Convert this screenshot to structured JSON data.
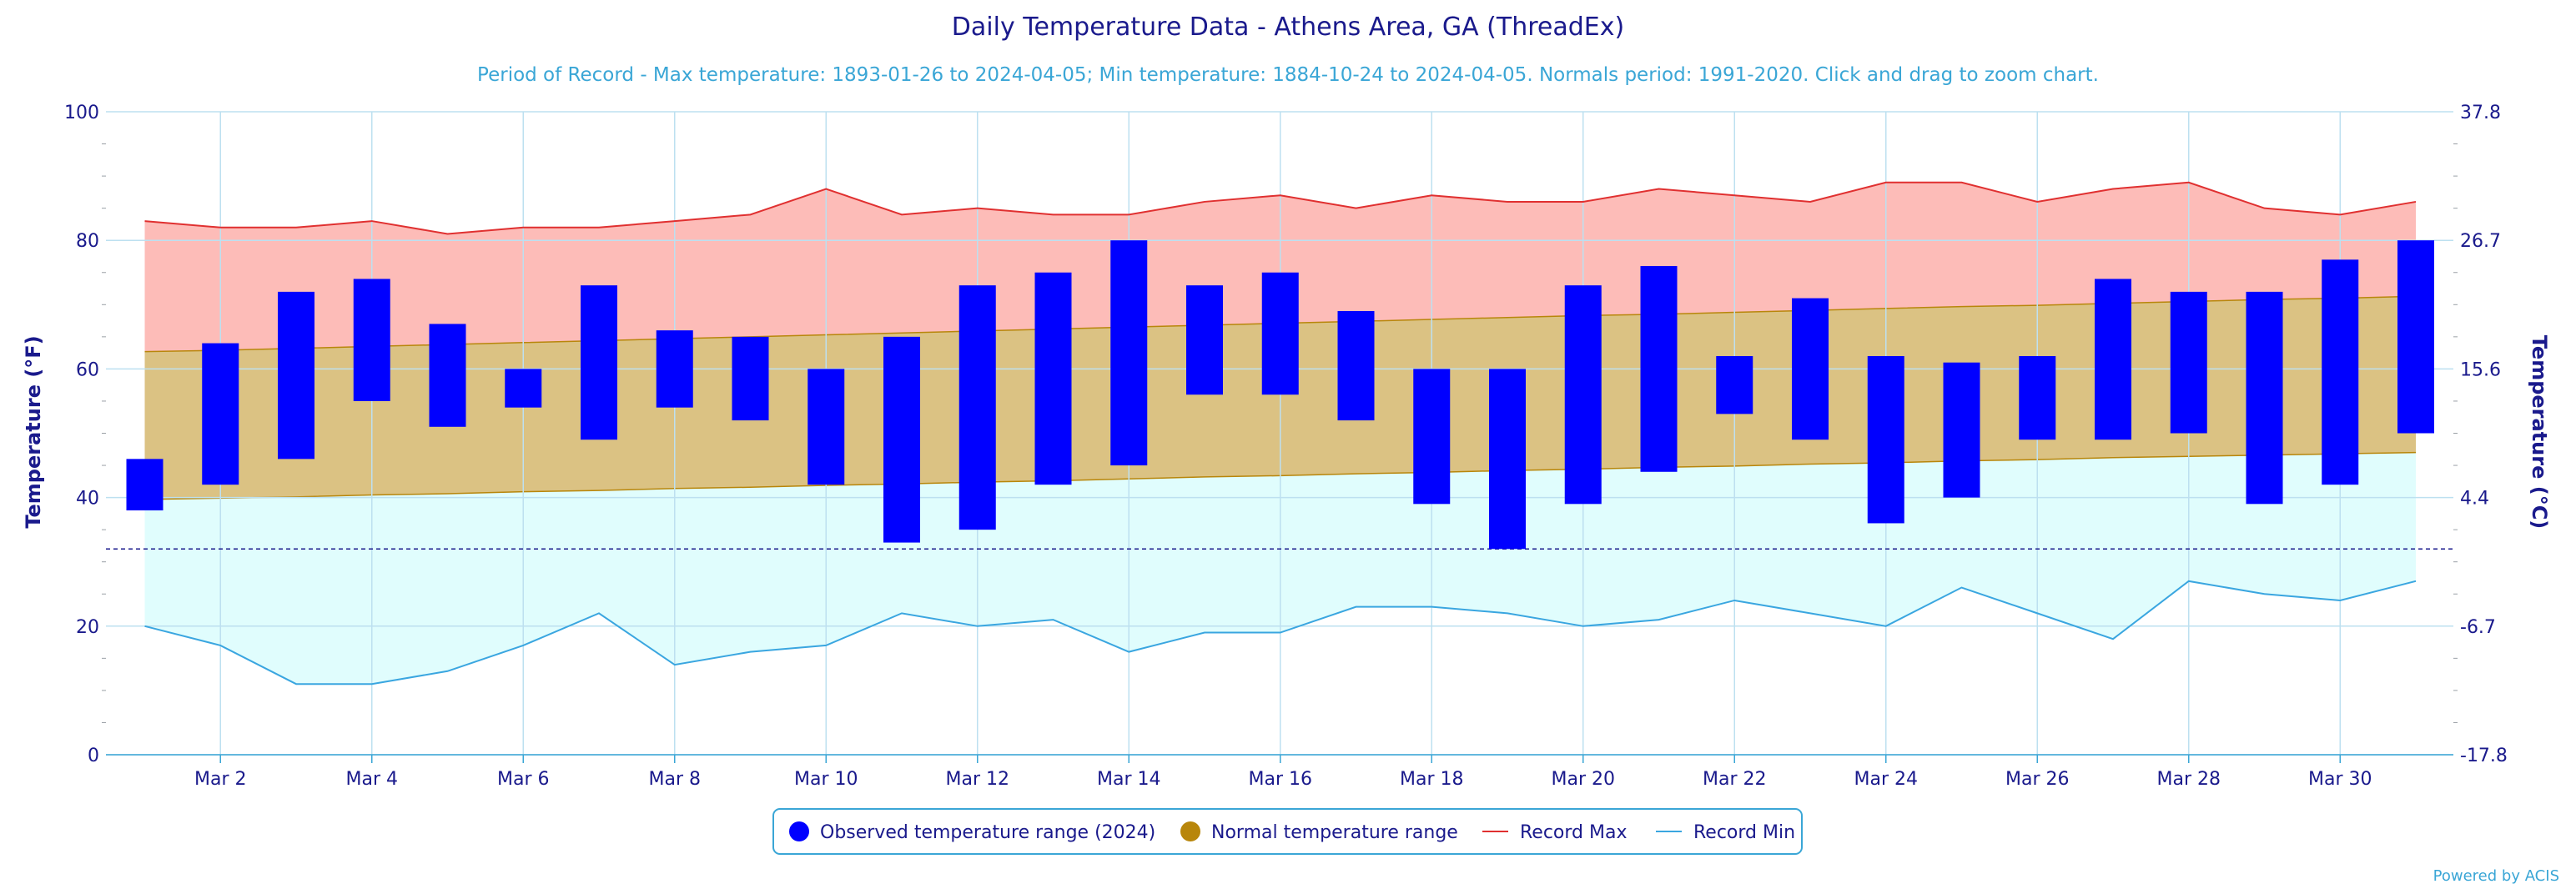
{
  "chart_data": {
    "type": "bar",
    "title": "Daily Temperature Data - Athens Area, GA (ThreadEx)",
    "subtitle": "Period of Record - Max temperature: 1893-01-26 to 2024-04-05; Min temperature: 1884-10-24 to 2024-04-05. Normals period: 1991-2020. Click and drag to zoom chart.",
    "ylabel": "Temperature (°F)",
    "y2label": "Temperature (°C)",
    "ylim": [
      0,
      100
    ],
    "yticks": [
      0,
      20,
      40,
      60,
      80,
      100
    ],
    "y2ticks": [
      "-17.8",
      "-6.7",
      "4.4",
      "15.6",
      "26.7",
      "37.8"
    ],
    "grid": true,
    "freezing_line": 32,
    "x": [
      1,
      2,
      3,
      4,
      5,
      6,
      7,
      8,
      9,
      10,
      11,
      12,
      13,
      14,
      15,
      16,
      17,
      18,
      19,
      20,
      21,
      22,
      23,
      24,
      25,
      26,
      27,
      28,
      29,
      30,
      31
    ],
    "xtick_labels": [
      "Mar 2",
      "Mar 4",
      "Mar 6",
      "Mar 8",
      "Mar 10",
      "Mar 12",
      "Mar 14",
      "Mar 16",
      "Mar 18",
      "Mar 20",
      "Mar 22",
      "Mar 24",
      "Mar 26",
      "Mar 28",
      "Mar 30"
    ],
    "xtick_days": [
      2,
      4,
      6,
      8,
      10,
      12,
      14,
      16,
      18,
      20,
      22,
      24,
      26,
      28,
      30
    ],
    "series": [
      {
        "name": "Observed temperature range (2024)",
        "color": "#0000ff",
        "high": [
          46,
          64,
          72,
          74,
          67,
          60,
          73,
          66,
          65,
          60,
          65,
          73,
          75,
          80,
          73,
          75,
          69,
          60,
          60,
          73,
          76,
          62,
          71,
          62,
          61,
          62,
          74,
          72,
          72,
          77,
          80
        ],
        "low": [
          38,
          42,
          46,
          55,
          51,
          54,
          49,
          54,
          52,
          42,
          33,
          35,
          42,
          45,
          56,
          56,
          52,
          39,
          32,
          39,
          44,
          53,
          49,
          36,
          40,
          49,
          49,
          50,
          39,
          42,
          50
        ]
      },
      {
        "name": "Normal temperature range",
        "color": "#b8860b",
        "high": [
          62.7,
          62.9,
          63.2,
          63.5,
          63.8,
          64.1,
          64.4,
          64.7,
          65.0,
          65.3,
          65.6,
          65.9,
          66.2,
          66.5,
          66.8,
          67.1,
          67.4,
          67.7,
          68.0,
          68.3,
          68.5,
          68.8,
          69.1,
          69.4,
          69.7,
          69.9,
          70.2,
          70.5,
          70.8,
          71.0,
          71.3
        ],
        "low": [
          39.7,
          39.9,
          40.1,
          40.4,
          40.6,
          40.9,
          41.1,
          41.4,
          41.6,
          41.9,
          42.1,
          42.4,
          42.6,
          42.9,
          43.2,
          43.4,
          43.7,
          43.9,
          44.2,
          44.4,
          44.7,
          44.9,
          45.2,
          45.4,
          45.7,
          45.9,
          46.2,
          46.4,
          46.6,
          46.8,
          47.0
        ]
      },
      {
        "name": "Record Max",
        "color": "#e03030",
        "values": [
          83,
          82,
          82,
          83,
          81,
          82,
          82,
          83,
          84,
          88,
          84,
          85,
          84,
          84,
          86,
          87,
          85,
          87,
          86,
          86,
          88,
          87,
          86,
          89,
          89,
          86,
          88,
          89,
          85,
          84,
          86
        ]
      },
      {
        "name": "Record Min",
        "color": "#3aa6e0",
        "values": [
          20,
          17,
          11,
          11,
          13,
          17,
          22,
          14,
          16,
          17,
          22,
          20,
          21,
          16,
          19,
          19,
          23,
          23,
          22,
          20,
          21,
          24,
          22,
          20,
          26,
          22,
          18,
          27,
          25,
          24,
          27
        ]
      }
    ],
    "legend_position": "bottom-center"
  },
  "credit": "Powered by ACIS"
}
